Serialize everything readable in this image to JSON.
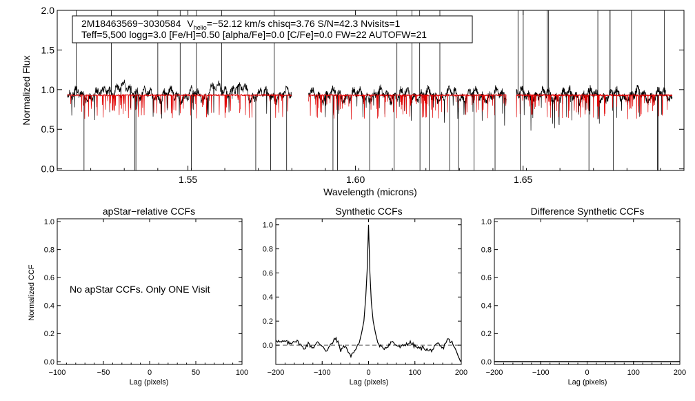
{
  "colors": {
    "observed": "#000000",
    "synthetic": "#e00000",
    "axis": "#000000",
    "zero_line": "#555555"
  },
  "chart_data": [
    {
      "type": "line",
      "id": "spectrum",
      "xlabel": "Wavelength (microns)",
      "ylabel": "Normalized Flux",
      "xlim": [
        1.511,
        1.698
      ],
      "ylim": [
        -0.02,
        2.0
      ],
      "xticks": [
        {
          "v": 1.55,
          "label": "1.55"
        },
        {
          "v": 1.6,
          "label": "1.60"
        },
        {
          "v": 1.65,
          "label": "1.65"
        }
      ],
      "yticks": [
        {
          "v": 0.0,
          "label": "0.0"
        },
        {
          "v": 0.5,
          "label": "0.5"
        },
        {
          "v": 1.0,
          "label": "1.0"
        },
        {
          "v": 1.5,
          "label": "1.5"
        },
        {
          "v": 2.0,
          "label": "2.0"
        }
      ],
      "legend": {
        "star": "2M18463569−3030584",
        "v_sym": "V",
        "v_sub": "helio",
        "v_rest": "=−52.12 km/s  chisq=3.76  S/N=42.3  Nvisits=1",
        "line2": "Teff=5,500 logg=3.0 [Fe/H]=0.50 [alpha/Fe]=0.0 [C/Fe]=0.0 FW=22 AUTOFW=21",
        "placement": "top-left"
      },
      "chips": [
        [
          1.514,
          1.581
        ],
        [
          1.586,
          1.645
        ],
        [
          1.648,
          1.6945
        ]
      ],
      "continuum_level": 0.93,
      "series": [
        {
          "name": "observed apStar",
          "color": "#000000"
        },
        {
          "name": "synthetic model",
          "color": "#e00000"
        }
      ]
    },
    {
      "type": "line",
      "id": "apstar-ccf",
      "title": "apStar−relative CCFs",
      "xlabel": "Lag (pixels)",
      "ylabel": "Normalized CCF",
      "xlim": [
        -100,
        100
      ],
      "ylim": [
        -0.02,
        1.02
      ],
      "xticks": [
        {
          "v": -100,
          "label": "−100"
        },
        {
          "v": -50,
          "label": "−50"
        },
        {
          "v": 0,
          "label": "0"
        },
        {
          "v": 50,
          "label": "50"
        },
        {
          "v": 100,
          "label": "100"
        }
      ],
      "yticks": [
        {
          "v": 0.0,
          "label": "0.0"
        },
        {
          "v": 0.2,
          "label": "0.2"
        },
        {
          "v": 0.4,
          "label": "0.4"
        },
        {
          "v": 0.6,
          "label": "0.6"
        },
        {
          "v": 0.8,
          "label": "0.8"
        },
        {
          "v": 1.0,
          "label": "1.0"
        }
      ],
      "message": "No apStar CCFs.  Only ONE Visit",
      "series": []
    },
    {
      "type": "line",
      "id": "synthetic-ccf",
      "title": "Synthetic CCFs",
      "xlabel": "Lag (pixels)",
      "ylabel": "",
      "xlim": [
        -200,
        200
      ],
      "ylim": [
        -0.16,
        1.05
      ],
      "xticks": [
        {
          "v": -200,
          "label": "−200"
        },
        {
          "v": -100,
          "label": "−100"
        },
        {
          "v": 0,
          "label": "0"
        },
        {
          "v": 100,
          "label": "100"
        },
        {
          "v": 200,
          "label": "200"
        }
      ],
      "yticks": [
        {
          "v": 0.0,
          "label": "0.0"
        },
        {
          "v": 0.2,
          "label": "0.2"
        },
        {
          "v": 0.4,
          "label": "0.4"
        },
        {
          "v": 0.6,
          "label": "0.6"
        },
        {
          "v": 0.8,
          "label": "0.8"
        },
        {
          "v": 1.0,
          "label": "1.0"
        }
      ],
      "zero_line": 0.0,
      "series": [
        {
          "name": "synthetic CCF",
          "peak_lag": 0,
          "peak_value": 1.0,
          "x": [
            -200,
            -190,
            -180,
            -170,
            -160,
            -150,
            -140,
            -130,
            -120,
            -110,
            -100,
            -90,
            -80,
            -70,
            -60,
            -50,
            -40,
            -30,
            -20,
            -15,
            -10,
            -6,
            -3,
            0,
            3,
            6,
            10,
            15,
            20,
            30,
            40,
            50,
            60,
            70,
            80,
            90,
            100,
            110,
            120,
            130,
            140,
            150,
            160,
            170,
            180,
            190,
            200
          ],
          "y": [
            0.05,
            0.02,
            0.03,
            0.01,
            0.04,
            0.02,
            -0.03,
            0.01,
            -0.02,
            0.02,
            0.0,
            -0.05,
            0.01,
            0.06,
            -0.04,
            0.0,
            -0.09,
            -0.05,
            0.02,
            0.1,
            0.2,
            0.4,
            0.62,
            1.0,
            0.6,
            0.36,
            0.2,
            0.1,
            0.02,
            -0.03,
            -0.01,
            0.03,
            0.0,
            -0.02,
            0.01,
            0.02,
            -0.01,
            -0.03,
            -0.02,
            -0.05,
            -0.03,
            0.01,
            -0.03,
            0.05,
            0.02,
            -0.06,
            -0.13
          ]
        }
      ]
    },
    {
      "type": "line",
      "id": "difference-ccf",
      "title": "Difference Synthetic CCFs",
      "xlabel": "Lag (pixels)",
      "ylabel": "",
      "xlim": [
        -200,
        200
      ],
      "ylim": [
        -0.02,
        1.02
      ],
      "xticks": [
        {
          "v": -200,
          "label": "−200"
        },
        {
          "v": -100,
          "label": "−100"
        },
        {
          "v": 0,
          "label": "0"
        },
        {
          "v": 100,
          "label": "100"
        },
        {
          "v": 200,
          "label": "200"
        }
      ],
      "yticks": [
        {
          "v": 0.0,
          "label": "0.0"
        },
        {
          "v": 0.2,
          "label": "0.2"
        },
        {
          "v": 0.4,
          "label": "0.4"
        },
        {
          "v": 0.6,
          "label": "0.6"
        },
        {
          "v": 0.8,
          "label": "0.8"
        },
        {
          "v": 1.0,
          "label": "1.0"
        }
      ],
      "series": [
        {
          "name": "difference CCF",
          "x": [
            -200,
            200
          ],
          "y": [
            0.0,
            0.0
          ]
        }
      ]
    }
  ]
}
